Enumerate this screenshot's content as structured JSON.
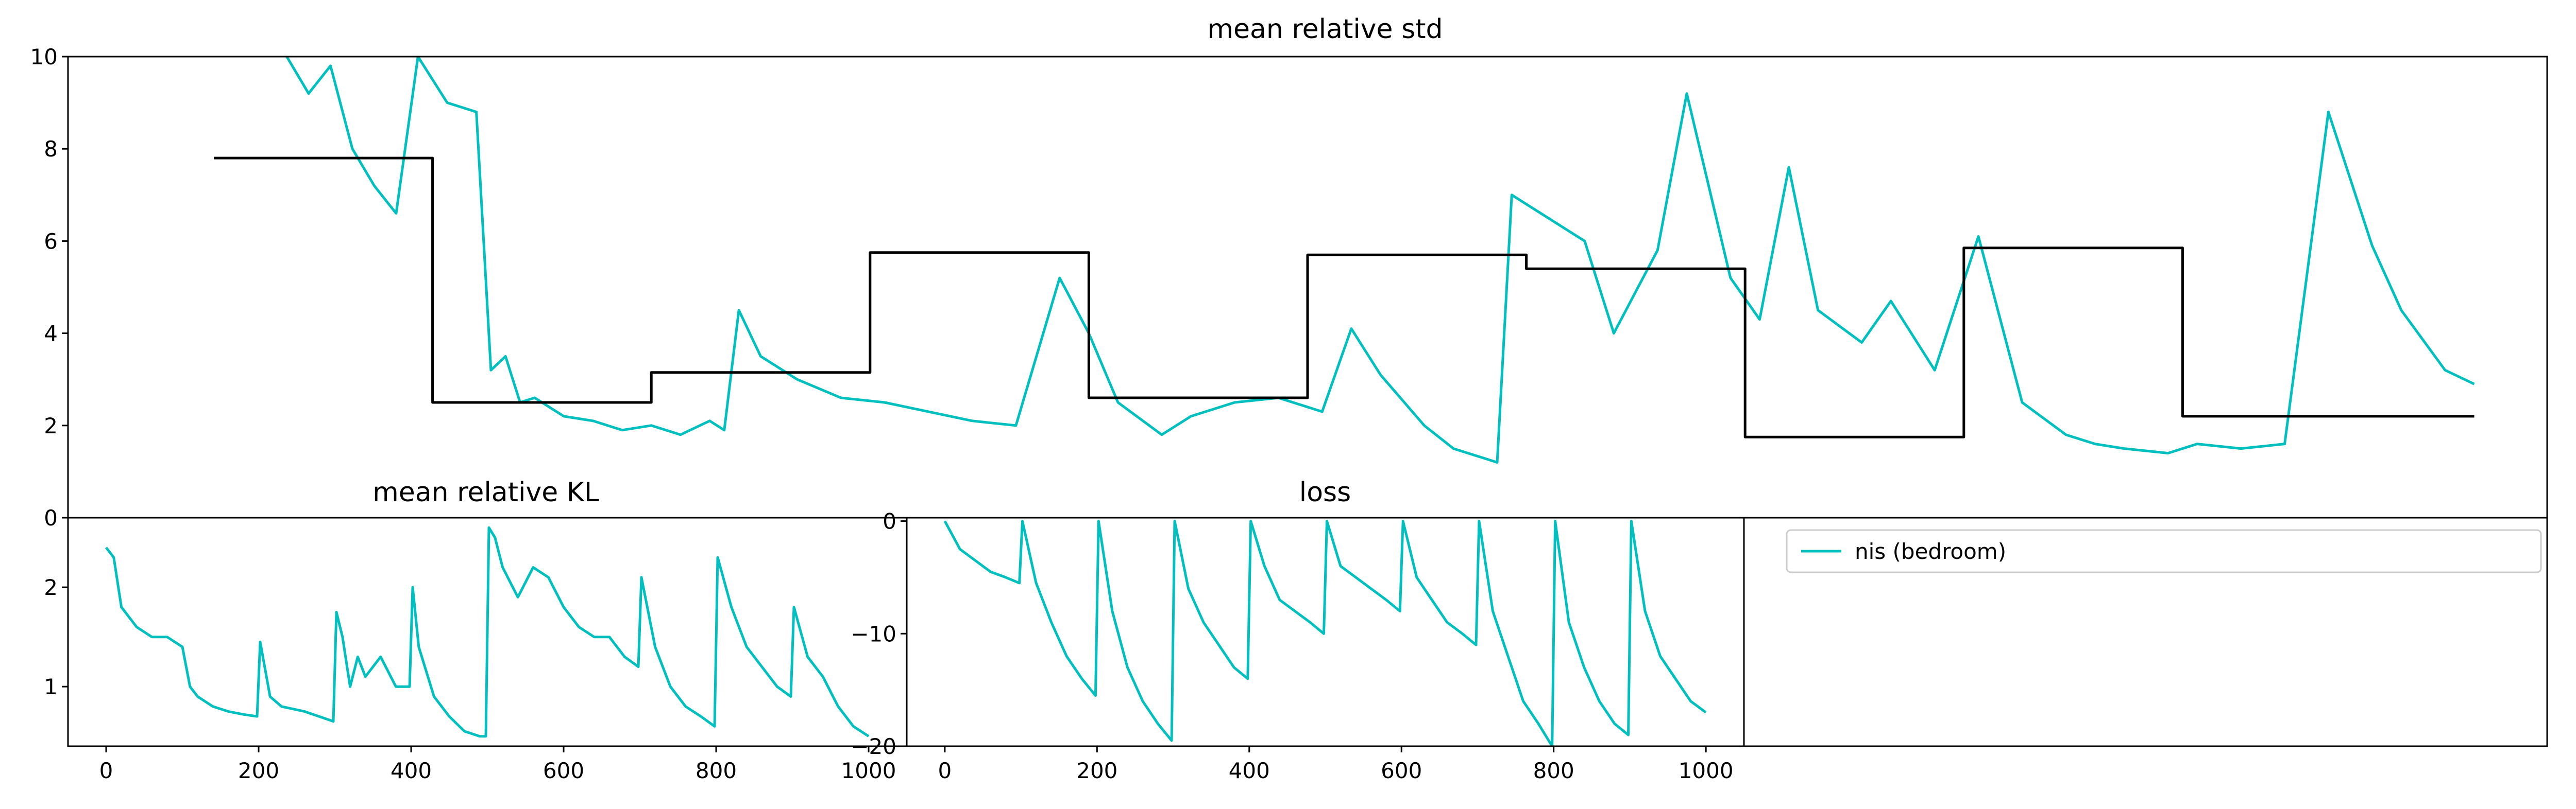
{
  "chart_data": [
    {
      "type": "line",
      "title": "mean relative std",
      "xlim": [
        -100,
        3300
      ],
      "ylim": [
        0,
        10
      ],
      "yticks": [
        "0",
        "2",
        "4",
        "6",
        "8",
        "10"
      ],
      "grid": false,
      "series": [
        {
          "name": "nis (bedroom)",
          "color": "#00bfbf",
          "x": [
            200,
            230,
            260,
            290,
            320,
            350,
            380,
            420,
            460,
            480,
            500,
            520,
            540,
            580,
            620,
            660,
            700,
            740,
            780,
            800,
            820,
            850,
            900,
            960,
            1020,
            1080,
            1140,
            1200,
            1260,
            1300,
            1340,
            1400,
            1440,
            1500,
            1560,
            1620,
            1660,
            1700,
            1760,
            1800,
            1840,
            1860,
            1880,
            1920,
            1980,
            2020,
            2080,
            2120,
            2180,
            2220,
            2260,
            2300,
            2360,
            2400,
            2460,
            2520,
            2580,
            2640,
            2680,
            2720,
            2780,
            2820,
            2880,
            2940,
            3000,
            3060,
            3100,
            3160,
            3200
          ],
          "y": [
            10.0,
            9.2,
            9.8,
            8.0,
            7.2,
            6.6,
            10.0,
            9.0,
            8.8,
            3.2,
            3.5,
            2.5,
            2.6,
            2.2,
            2.1,
            1.9,
            2.0,
            1.8,
            2.1,
            1.9,
            4.5,
            3.5,
            3.0,
            2.6,
            2.5,
            2.3,
            2.1,
            2.0,
            5.2,
            4.0,
            2.5,
            1.8,
            2.2,
            2.5,
            2.6,
            2.3,
            4.1,
            3.1,
            2.0,
            1.5,
            1.3,
            1.2,
            7.0,
            6.6,
            6.0,
            4.0,
            5.8,
            9.2,
            5.2,
            4.3,
            7.6,
            4.5,
            3.8,
            4.7,
            3.2,
            6.1,
            2.5,
            1.8,
            1.6,
            1.5,
            1.4,
            1.6,
            1.5,
            1.6,
            8.8,
            5.9,
            4.5,
            3.2,
            2.9
          ]
        },
        {
          "name": "",
          "color": "#000000",
          "x": [
            100,
            400,
            400,
            700,
            700,
            1000,
            1000,
            1300,
            1300,
            1600,
            1600,
            1900,
            1900,
            2200,
            2200,
            2500,
            2500,
            2800,
            2800,
            3100,
            3100,
            3200
          ],
          "y": [
            7.8,
            7.8,
            2.5,
            2.5,
            3.15,
            3.15,
            5.75,
            5.75,
            2.6,
            2.6,
            5.7,
            5.7,
            5.4,
            5.4,
            1.75,
            1.75,
            5.85,
            5.85,
            2.2,
            2.2,
            2.2,
            2.2
          ]
        }
      ]
    },
    {
      "type": "line",
      "title": "mean relative KL",
      "xlim": [
        -50,
        1050
      ],
      "ylim": [
        0.4,
        2.7
      ],
      "xticks": [
        "0",
        "200",
        "400",
        "600",
        "800",
        "1000"
      ],
      "yticks": [
        "1",
        "2"
      ],
      "grid": false,
      "series": [
        {
          "name": "nis (bedroom)",
          "color": "#00bfbf",
          "x": [
            0,
            10,
            20,
            40,
            60,
            80,
            100,
            110,
            120,
            140,
            160,
            180,
            198,
            202,
            215,
            230,
            260,
            298,
            302,
            310,
            320,
            330,
            340,
            360,
            380,
            398,
            402,
            410,
            430,
            450,
            470,
            490,
            498,
            502,
            510,
            520,
            540,
            560,
            580,
            600,
            620,
            640,
            660,
            680,
            698,
            702,
            720,
            740,
            760,
            780,
            798,
            802,
            820,
            840,
            860,
            880,
            898,
            902,
            920,
            940,
            960,
            980,
            1000
          ],
          "y": [
            2.4,
            2.3,
            1.8,
            1.6,
            1.5,
            1.5,
            1.4,
            1.0,
            0.9,
            0.8,
            0.75,
            0.72,
            0.7,
            1.45,
            0.9,
            0.8,
            0.75,
            0.65,
            1.75,
            1.5,
            1.0,
            1.3,
            1.1,
            1.3,
            1.0,
            1.0,
            2.0,
            1.4,
            0.9,
            0.7,
            0.55,
            0.5,
            0.5,
            2.6,
            2.5,
            2.2,
            1.9,
            2.2,
            2.1,
            1.8,
            1.6,
            1.5,
            1.5,
            1.3,
            1.2,
            2.1,
            1.4,
            1.0,
            0.8,
            0.7,
            0.6,
            2.3,
            1.8,
            1.4,
            1.2,
            1.0,
            0.9,
            1.8,
            1.3,
            1.1,
            0.8,
            0.6,
            0.5
          ]
        }
      ]
    },
    {
      "type": "line",
      "title": "loss",
      "xlim": [
        -50,
        1050
      ],
      "ylim": [
        -20,
        0.3
      ],
      "xticks": [
        "0",
        "200",
        "400",
        "600",
        "800",
        "1000"
      ],
      "yticks": [
        "0",
        "−10",
        "−20"
      ],
      "grid": false,
      "series": [
        {
          "name": "nis (bedroom)",
          "color": "#00bfbf",
          "x": [
            0,
            20,
            40,
            60,
            80,
            98,
            102,
            120,
            140,
            160,
            180,
            198,
            202,
            220,
            240,
            260,
            280,
            298,
            302,
            320,
            340,
            360,
            380,
            398,
            402,
            420,
            440,
            460,
            480,
            498,
            502,
            520,
            540,
            560,
            580,
            598,
            602,
            620,
            640,
            660,
            680,
            698,
            702,
            720,
            740,
            760,
            780,
            798,
            802,
            820,
            840,
            860,
            880,
            898,
            902,
            920,
            940,
            960,
            980,
            1000
          ],
          "y": [
            0,
            -2.5,
            -3.5,
            -4.5,
            -5.0,
            -5.5,
            0,
            -5.5,
            -9.0,
            -12.0,
            -14.0,
            -15.5,
            0,
            -8.0,
            -13.0,
            -16.0,
            -18.0,
            -19.5,
            0,
            -6.0,
            -9.0,
            -11.0,
            -13.0,
            -14.0,
            0,
            -4.0,
            -7.0,
            -8.0,
            -9.0,
            -10.0,
            0,
            -4.0,
            -5.0,
            -6.0,
            -7.0,
            -8.0,
            0,
            -5.0,
            -7.0,
            -9.0,
            -10.0,
            -11.0,
            0,
            -8.0,
            -12.0,
            -16.0,
            -18.0,
            -20.0,
            0,
            -9.0,
            -13.0,
            -16.0,
            -18.0,
            -19.0,
            0,
            -8.0,
            -12.0,
            -14.0,
            -16.0,
            -17.0
          ]
        }
      ]
    }
  ],
  "legend": {
    "entries": [
      {
        "label": "nis (bedroom)",
        "color": "#00bfbf"
      }
    ]
  }
}
